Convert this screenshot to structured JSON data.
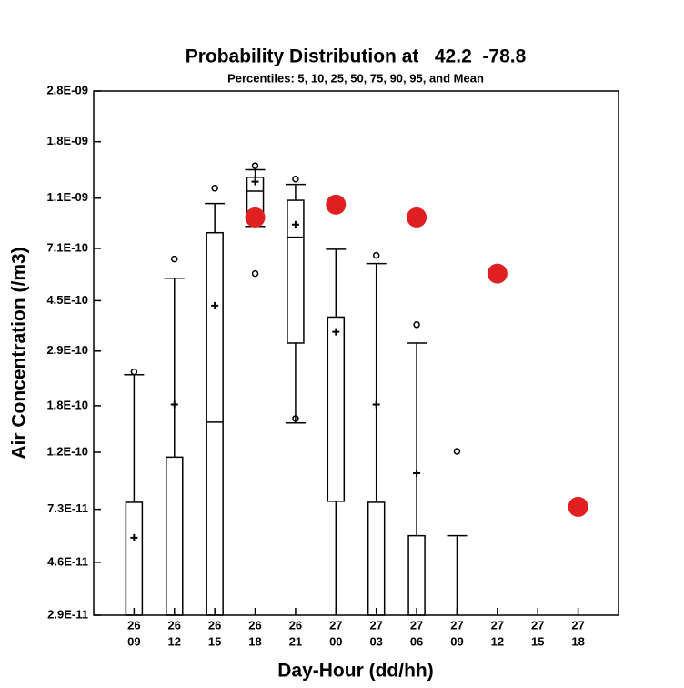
{
  "chart_data": {
    "type": "box",
    "title": "Probability Distribution at   42.2  -78.8",
    "subtitle": "Percentiles: 5, 10, 25, 50, 75, 90, 95, and Mean",
    "x_label": "Day-Hour (dd/hh)",
    "y_label": "Air Concentration (/m3)",
    "log_y": true,
    "ylim": [
      2.9e-11,
      2.8e-09
    ],
    "yticks": [
      {
        "value": 2.9e-11,
        "label": "2.9E-11"
      },
      {
        "value": 4.6e-11,
        "label": "4.6E-11"
      },
      {
        "value": 7.3e-11,
        "label": "7.3E-11"
      },
      {
        "value": 1.2e-10,
        "label": "1.2E-10"
      },
      {
        "value": 1.8e-10,
        "label": "1.8E-10"
      },
      {
        "value": 2.9e-10,
        "label": "2.9E-10"
      },
      {
        "value": 4.5e-10,
        "label": "4.5E-10"
      },
      {
        "value": 7.1e-10,
        "label": "7.1E-10"
      },
      {
        "value": 1.1e-09,
        "label": "1.1E-09"
      },
      {
        "value": 1.8e-09,
        "label": "1.8E-09"
      },
      {
        "value": 2.8e-09,
        "label": "2.8E-09"
      }
    ],
    "categories": [
      [
        "26",
        "09"
      ],
      [
        "26",
        "12"
      ],
      [
        "26",
        "15"
      ],
      [
        "26",
        "18"
      ],
      [
        "26",
        "21"
      ],
      [
        "27",
        "00"
      ],
      [
        "27",
        "03"
      ],
      [
        "27",
        "06"
      ],
      [
        "27",
        "09"
      ],
      [
        "27",
        "12"
      ],
      [
        "27",
        "15"
      ],
      [
        "27",
        "18"
      ]
    ],
    "box_color": "#000000",
    "boxes": [
      {
        "p5": null,
        "p10": null,
        "p25": null,
        "p50": null,
        "p75": 7.76e-11,
        "p90": 2.36e-10,
        "p95": 2.42e-10,
        "mean": 5.7e-11
      },
      {
        "p5": null,
        "p10": null,
        "p25": null,
        "p50": null,
        "p75": 1.15e-10,
        "p90": 5.47e-10,
        "p95": 6.47e-10,
        "mean": 1.82e-10
      },
      {
        "p5": null,
        "p10": null,
        "p25": null,
        "p50": 1.56e-10,
        "p75": 8.14e-10,
        "p90": 1.05e-09,
        "p95": 1.2e-09,
        "mean": 4.31e-10
      },
      {
        "p5": 5.7e-10,
        "p10": 8.6e-10,
        "p25": 9.32e-10,
        "p50": 1.17e-09,
        "p75": 1.32e-09,
        "p90": 1.41e-09,
        "p95": 1.46e-09,
        "mean": 1.27e-09
      },
      {
        "p5": 1.61e-10,
        "p10": 1.55e-10,
        "p25": 3.11e-10,
        "p50": 7.83e-10,
        "p75": 1.08e-09,
        "p90": 1.24e-09,
        "p95": 1.3e-09,
        "mean": 8.74e-10
      },
      {
        "p5": null,
        "p10": null,
        "p25": 7.83e-11,
        "p50": null,
        "p75": 3.9e-10,
        "p90": 7.05e-10,
        "p95": null,
        "mean": 3.43e-10
      },
      {
        "p5": null,
        "p10": null,
        "p25": null,
        "p50": null,
        "p75": 7.76e-11,
        "p90": 6.22e-10,
        "p95": 6.68e-10,
        "mean": 1.82e-10
      },
      {
        "p5": null,
        "p10": null,
        "p25": null,
        "p50": null,
        "p75": 5.8e-11,
        "p90": 3.11e-10,
        "p95": 3.65e-10,
        "mean": 1e-10
      },
      {
        "p5": null,
        "p10": null,
        "p25": null,
        "p50": null,
        "p75": null,
        "p90": 5.8e-11,
        "p95": 1.21e-10,
        "mean": null
      },
      {
        "p5": null,
        "p10": null,
        "p25": null,
        "p50": null,
        "p75": null,
        "p90": null,
        "p95": null,
        "mean": null
      },
      {
        "p5": null,
        "p10": null,
        "p25": null,
        "p50": null,
        "p75": null,
        "p90": null,
        "p95": null,
        "mean": null
      },
      {
        "p5": null,
        "p10": null,
        "p25": null,
        "p50": null,
        "p75": null,
        "p90": null,
        "p95": null,
        "mean": null
      }
    ],
    "observed": {
      "color": "#e02020",
      "values": [
        null,
        null,
        null,
        9.3e-10,
        null,
        1.04e-09,
        null,
        9.3e-10,
        null,
        5.7e-10,
        null,
        7.46e-11
      ]
    }
  }
}
